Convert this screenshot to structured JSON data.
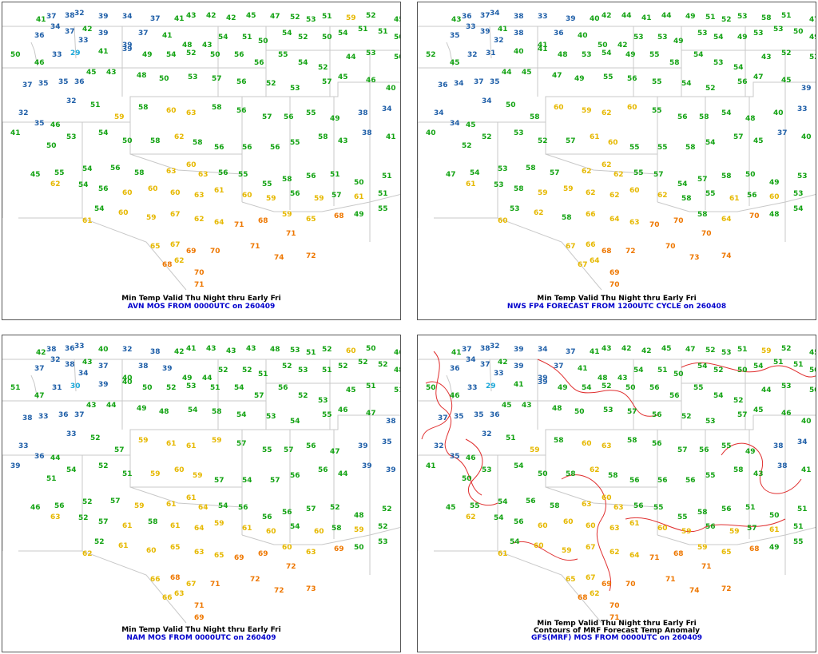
{
  "panels": [
    {
      "caption_line1": "Min Temp Valid Thu Night thru Early Fri",
      "caption_line2": "AVN MOS FROM 0000UTC on 260409",
      "caption_line3": "",
      "has_anomaly_contours": false
    },
    {
      "caption_line1": "Min Temp Valid Thu Night thru Early Fri",
      "caption_line2": "NWS FP4 FORECAST FROM 1200UTC CYCLE on 260408",
      "caption_line3": "",
      "has_anomaly_contours": false
    },
    {
      "caption_line1": "Min Temp Valid Thu Night thru Early Fri",
      "caption_line2": "NAM MOS FROM 0000UTC on 260409",
      "caption_line3": "",
      "has_anomaly_contours": false
    },
    {
      "caption_line1": "Min Temp Valid Thu Night thru Early Fri",
      "caption_line2": "Contours of MRF Forecast Temp Anomaly",
      "caption_line3": "GFS(MRF) MOS FROM 0000UTC on 260409",
      "has_anomaly_contours": true
    }
  ],
  "color_scale": [
    {
      "max": 30,
      "color": "#1aa7d8"
    },
    {
      "max": 39,
      "color": "#1f5fa8"
    },
    {
      "max": 58,
      "color": "#13a313"
    },
    {
      "max": 67,
      "color": "#e6b800"
    },
    {
      "max": 99,
      "color": "#ee7700"
    }
  ],
  "stations": [
    [
      42,
      18,
      42
    ],
    [
      55,
      14,
      37
    ],
    [
      78,
      13,
      37
    ],
    [
      90,
      10,
      33
    ],
    [
      120,
      14,
      39
    ],
    [
      150,
      14,
      33
    ],
    [
      185,
      17,
      38
    ],
    [
      215,
      17,
      41
    ],
    [
      230,
      13,
      42
    ],
    [
      255,
      13,
      43
    ],
    [
      280,
      16,
      42
    ],
    [
      305,
      13,
      44
    ],
    [
      335,
      14,
      48
    ],
    [
      360,
      15,
      52
    ],
    [
      380,
      18,
      52
    ],
    [
      400,
      14,
      52
    ],
    [
      430,
      16,
      59
    ],
    [
      455,
      13,
      51
    ],
    [
      490,
      18,
      46
    ],
    [
      40,
      38,
      36
    ],
    [
      60,
      27,
      33
    ],
    [
      78,
      33,
      38
    ],
    [
      100,
      30,
      42
    ],
    [
      120,
      35,
      38
    ],
    [
      150,
      55,
      40
    ],
    [
      170,
      35,
      37
    ],
    [
      200,
      38,
      40
    ],
    [
      225,
      50,
      49
    ],
    [
      250,
      50,
      43
    ],
    [
      270,
      40,
      53
    ],
    [
      300,
      40,
      52
    ],
    [
      320,
      45,
      50
    ],
    [
      350,
      35,
      53
    ],
    [
      370,
      40,
      53
    ],
    [
      400,
      40,
      50
    ],
    [
      420,
      35,
      53
    ],
    [
      445,
      30,
      52
    ],
    [
      470,
      33,
      51
    ],
    [
      490,
      40,
      49
    ],
    [
      10,
      62,
      51
    ],
    [
      40,
      72,
      46
    ],
    [
      62,
      62,
      32
    ],
    [
      85,
      60,
      30
    ],
    [
      95,
      44,
      33
    ],
    [
      120,
      58,
      40
    ],
    [
      150,
      50,
      40
    ],
    [
      175,
      62,
      49
    ],
    [
      205,
      62,
      53
    ],
    [
      230,
      60,
      53
    ],
    [
      260,
      62,
      50
    ],
    [
      290,
      62,
      55
    ],
    [
      315,
      72,
      57
    ],
    [
      345,
      62,
      55
    ],
    [
      370,
      72,
      53
    ],
    [
      395,
      78,
      53
    ],
    [
      430,
      65,
      44
    ],
    [
      455,
      60,
      52
    ],
    [
      490,
      65,
      51
    ],
    [
      25,
      100,
      37
    ],
    [
      45,
      98,
      34
    ],
    [
      70,
      96,
      36
    ],
    [
      90,
      96,
      36
    ],
    [
      105,
      84,
      44
    ],
    [
      130,
      84,
      44
    ],
    [
      168,
      88,
      48
    ],
    [
      196,
      92,
      49
    ],
    [
      232,
      90,
      54
    ],
    [
      262,
      92,
      57
    ],
    [
      293,
      96,
      55
    ],
    [
      330,
      98,
      53
    ],
    [
      360,
      104,
      53
    ],
    [
      400,
      96,
      56
    ],
    [
      420,
      90,
      46
    ],
    [
      455,
      94,
      46
    ],
    [
      480,
      104,
      39
    ],
    [
      20,
      135,
      33
    ],
    [
      40,
      148,
      35
    ],
    [
      60,
      150,
      45
    ],
    [
      80,
      120,
      33
    ],
    [
      110,
      125,
      51
    ],
    [
      140,
      140,
      58
    ],
    [
      170,
      128,
      59
    ],
    [
      205,
      132,
      60
    ],
    [
      230,
      135,
      62
    ],
    [
      262,
      128,
      59
    ],
    [
      293,
      132,
      56
    ],
    [
      325,
      140,
      56
    ],
    [
      352,
      140,
      57
    ],
    [
      380,
      135,
      55
    ],
    [
      410,
      142,
      48
    ],
    [
      445,
      135,
      39
    ],
    [
      475,
      130,
      34
    ],
    [
      10,
      160,
      40
    ],
    [
      55,
      176,
      51
    ],
    [
      80,
      165,
      53
    ],
    [
      120,
      160,
      53
    ],
    [
      150,
      170,
      51
    ],
    [
      185,
      170,
      58
    ],
    [
      215,
      165,
      61
    ],
    [
      238,
      172,
      59
    ],
    [
      265,
      178,
      56
    ],
    [
      300,
      178,
      55
    ],
    [
      335,
      178,
      57
    ],
    [
      360,
      172,
      55
    ],
    [
      395,
      165,
      57
    ],
    [
      420,
      170,
      44
    ],
    [
      450,
      160,
      38
    ],
    [
      480,
      165,
      40
    ],
    [
      35,
      212,
      46
    ],
    [
      65,
      210,
      55
    ],
    [
      100,
      205,
      53
    ],
    [
      135,
      204,
      57
    ],
    [
      165,
      210,
      58
    ],
    [
      205,
      208,
      62
    ],
    [
      230,
      200,
      61
    ],
    [
      245,
      212,
      63
    ],
    [
      270,
      210,
      55
    ],
    [
      295,
      212,
      56
    ],
    [
      325,
      224,
      55
    ],
    [
      350,
      218,
      57
    ],
    [
      380,
      214,
      57
    ],
    [
      410,
      212,
      51
    ],
    [
      440,
      222,
      49
    ],
    [
      475,
      214,
      52
    ],
    [
      60,
      224,
      62
    ],
    [
      95,
      225,
      53
    ],
    [
      120,
      230,
      57
    ],
    [
      150,
      235,
      60
    ],
    [
      182,
      230,
      59
    ],
    [
      210,
      235,
      61
    ],
    [
      240,
      238,
      63
    ],
    [
      265,
      232,
      60
    ],
    [
      300,
      238,
      61
    ],
    [
      330,
      242,
      59
    ],
    [
      360,
      236,
      55
    ],
    [
      390,
      242,
      60
    ],
    [
      412,
      238,
      57
    ],
    [
      440,
      240,
      60
    ],
    [
      470,
      236,
      52
    ],
    [
      100,
      270,
      61
    ],
    [
      115,
      255,
      53
    ],
    [
      145,
      260,
      61
    ],
    [
      180,
      266,
      59
    ],
    [
      210,
      262,
      66
    ],
    [
      240,
      268,
      63
    ],
    [
      265,
      272,
      64
    ],
    [
      290,
      275,
      70
    ],
    [
      320,
      270,
      69
    ],
    [
      350,
      262,
      59
    ],
    [
      380,
      268,
      64
    ],
    [
      415,
      264,
      69
    ],
    [
      440,
      262,
      49
    ],
    [
      470,
      255,
      54
    ],
    [
      185,
      302,
      66
    ],
    [
      210,
      300,
      67
    ],
    [
      230,
      308,
      68
    ],
    [
      260,
      308,
      71
    ],
    [
      310,
      302,
      71
    ],
    [
      340,
      316,
      73
    ],
    [
      380,
      314,
      73
    ],
    [
      355,
      286,
      71
    ],
    [
      200,
      325,
      67
    ],
    [
      215,
      320,
      63
    ],
    [
      240,
      335,
      70
    ],
    [
      240,
      350,
      70
    ]
  ]
}
